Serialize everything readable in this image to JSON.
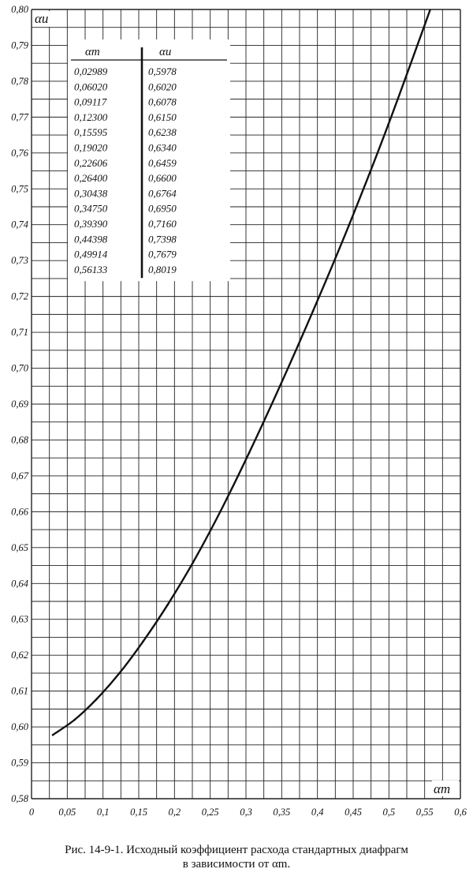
{
  "chart_data": {
    "type": "line",
    "xlabel": "αm",
    "ylabel": "αи",
    "xlim": [
      0,
      0.6
    ],
    "ylim": [
      0.58,
      0.8
    ],
    "x_ticks": [
      "0",
      "0,05",
      "0,1",
      "0,15",
      "0,2",
      "0,25",
      "0,3",
      "0,35",
      "0,4",
      "0,45",
      "0,5",
      "0,55",
      "0,6"
    ],
    "y_ticks": [
      "0,58",
      "0,59",
      "0,60",
      "0,61",
      "0,62",
      "0,63",
      "0,64",
      "0,65",
      "0,66",
      "0,67",
      "0,68",
      "0,69",
      "0,70",
      "0,71",
      "0,72",
      "0,73",
      "0,74",
      "0,75",
      "0,76",
      "0,77",
      "0,78",
      "0,79",
      "0,80"
    ],
    "grid": true,
    "series": [
      {
        "x": [
          0.02989,
          0.0602,
          0.09117,
          0.123,
          0.15595,
          0.1902,
          0.22606,
          0.264,
          0.30438,
          0.3475,
          0.3939,
          0.44398,
          0.49914,
          0.56133
        ],
        "y": [
          0.5978,
          0.602,
          0.6078,
          0.615,
          0.6238,
          0.634,
          0.6459,
          0.66,
          0.6764,
          0.695,
          0.716,
          0.7398,
          0.7679,
          0.8019
        ]
      }
    ],
    "table": {
      "headers": [
        "αm",
        "αи"
      ],
      "rows": [
        [
          "0,02989",
          "0,5978"
        ],
        [
          "0,06020",
          "0,6020"
        ],
        [
          "0,09117",
          "0,6078"
        ],
        [
          "0,12300",
          "0,6150"
        ],
        [
          "0,15595",
          "0,6238"
        ],
        [
          "0,19020",
          "0,6340"
        ],
        [
          "0,22606",
          "0,6459"
        ],
        [
          "0,26400",
          "0,6600"
        ],
        [
          "0,30438",
          "0,6764"
        ],
        [
          "0,34750",
          "0,6950"
        ],
        [
          "0,39390",
          "0,7160"
        ],
        [
          "0,44398",
          "0,7398"
        ],
        [
          "0,49914",
          "0,7679"
        ],
        [
          "0,56133",
          "0,8019"
        ]
      ]
    }
  },
  "caption": {
    "line1": "Рис. 14-9-1. Исходный коэффициент расхода стандартных диафрагм",
    "line2": "в зависимости от αm."
  }
}
